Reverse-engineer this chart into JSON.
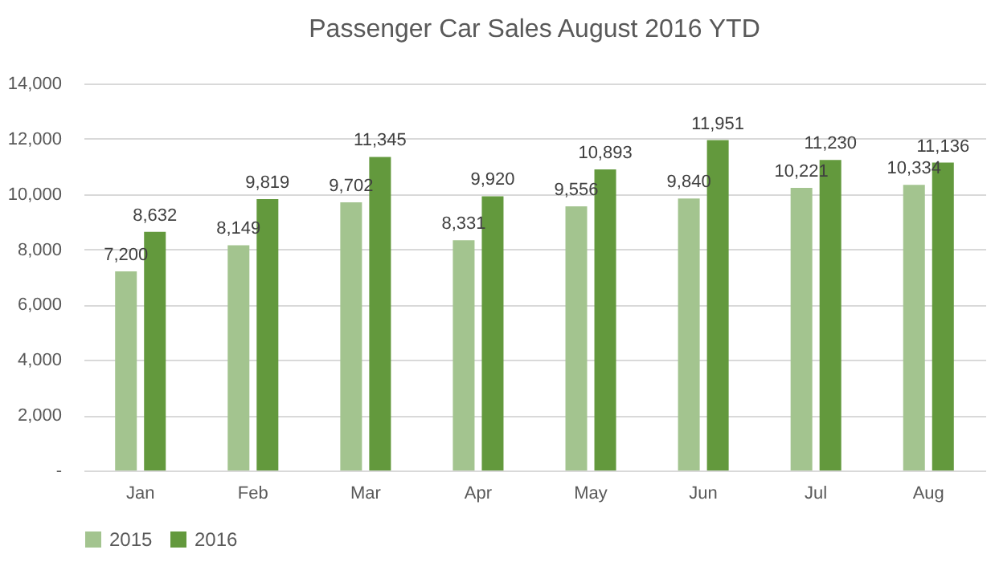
{
  "chart_data": {
    "type": "bar",
    "title": "Passenger Car Sales August 2016 YTD",
    "categories": [
      "Jan",
      "Feb",
      "Mar",
      "Apr",
      "May",
      "Jun",
      "Jul",
      "Aug"
    ],
    "series": [
      {
        "name": "2015",
        "color": "#a3c48f",
        "values": [
          7200,
          8149,
          9702,
          8331,
          9556,
          9840,
          10221,
          10334
        ],
        "value_labels": [
          "7,200",
          "8,149",
          "9,702",
          "8,331",
          "9,556",
          "9,840",
          "10,221",
          "10,334"
        ]
      },
      {
        "name": "2016",
        "color": "#63993d",
        "values": [
          8632,
          9819,
          11345,
          9920,
          10893,
          11951,
          11230,
          11136
        ],
        "value_labels": [
          "8,632",
          "9,819",
          "11,345",
          "9,920",
          "10,893",
          "11,951",
          "11,230",
          "11,136"
        ]
      }
    ],
    "ylim": [
      0,
      14000
    ],
    "yticks": [
      {
        "value": 0,
        "label": "-"
      },
      {
        "value": 2000,
        "label": "2,000"
      },
      {
        "value": 4000,
        "label": "4,000"
      },
      {
        "value": 6000,
        "label": "6,000"
      },
      {
        "value": 8000,
        "label": "8,000"
      },
      {
        "value": 10000,
        "label": "10,000"
      },
      {
        "value": 12000,
        "label": "12,000"
      },
      {
        "value": 14000,
        "label": "14,000"
      }
    ],
    "grid": "y",
    "legend": "bottom"
  }
}
